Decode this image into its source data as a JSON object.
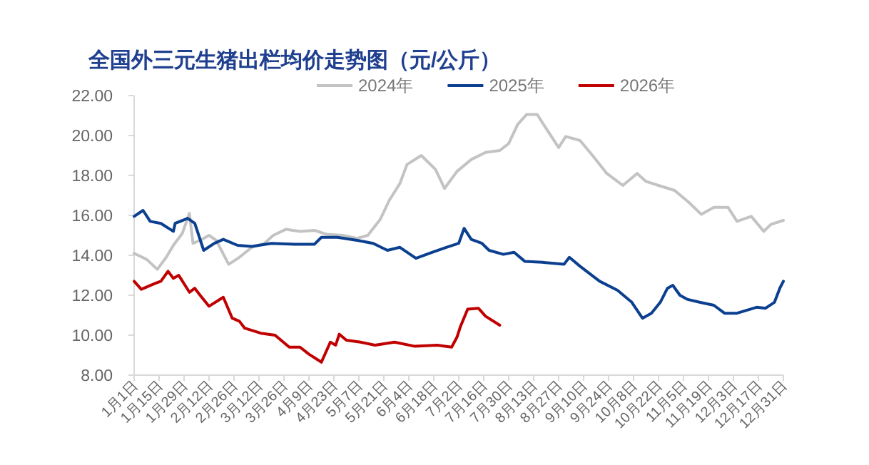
{
  "chart_data": {
    "type": "line",
    "title": "全国外三元生猪出栏均价走势图（元/公斤）",
    "xlim": [
      "--01-01",
      "--12-31"
    ],
    "ylim": [
      8,
      22
    ],
    "yticks": [
      {
        "value": 8,
        "label": "8.00"
      },
      {
        "value": 10,
        "label": "10.00"
      },
      {
        "value": 12,
        "label": "12.00"
      },
      {
        "value": 14,
        "label": "14.00"
      },
      {
        "value": 16,
        "label": "16.00"
      },
      {
        "value": 18,
        "label": "18.00"
      },
      {
        "value": 20,
        "label": "20.00"
      },
      {
        "value": 22,
        "label": "22.00"
      }
    ],
    "xticks": [
      {
        "value": "--01-01",
        "label": "1月1日"
      },
      {
        "value": "--01-15",
        "label": "1月15日"
      },
      {
        "value": "--01-29",
        "label": "1月29日"
      },
      {
        "value": "--02-12",
        "label": "2月12日"
      },
      {
        "value": "--02-26",
        "label": "2月26日"
      },
      {
        "value": "--03-12",
        "label": "3月12日"
      },
      {
        "value": "--03-26",
        "label": "3月26日"
      },
      {
        "value": "--04-09",
        "label": "4月9日"
      },
      {
        "value": "--04-23",
        "label": "4月23日"
      },
      {
        "value": "--05-07",
        "label": "5月7日"
      },
      {
        "value": "--05-21",
        "label": "5月21日"
      },
      {
        "value": "--06-04",
        "label": "6月4日"
      },
      {
        "value": "--06-18",
        "label": "6月18日"
      },
      {
        "value": "--07-02",
        "label": "7月2日"
      },
      {
        "value": "--07-16",
        "label": "7月16日"
      },
      {
        "value": "--07-30",
        "label": "7月30日"
      },
      {
        "value": "--08-13",
        "label": "8月13日"
      },
      {
        "value": "--08-27",
        "label": "8月27日"
      },
      {
        "value": "--09-10",
        "label": "9月10日"
      },
      {
        "value": "--09-24",
        "label": "9月24日"
      },
      {
        "value": "--10-08",
        "label": "10月8日"
      },
      {
        "value": "--10-22",
        "label": "10月22日"
      },
      {
        "value": "--11-05",
        "label": "11月5日"
      },
      {
        "value": "--11-19",
        "label": "11月19日"
      },
      {
        "value": "--12-03",
        "label": "12月3日"
      },
      {
        "value": "--12-17",
        "label": "12月17日"
      },
      {
        "value": "--12-31",
        "label": "12月31日"
      }
    ],
    "legend": "top",
    "series": [
      {
        "name": "2024年",
        "color": "#c3c3c3",
        "x": [
          "--01-01",
          "--01-08",
          "--01-14",
          "--01-19",
          "--01-23",
          "--01-28",
          "--02-01",
          "--02-03",
          "--02-07",
          "--02-12",
          "--02-16",
          "--02-23",
          "--03-01",
          "--03-08",
          "--03-15",
          "--03-20",
          "--03-27",
          "--04-04",
          "--04-12",
          "--04-19",
          "--04-28",
          "--05-06",
          "--05-12",
          "--05-19",
          "--05-24",
          "--05-30",
          "--06-03",
          "--06-11",
          "--06-19",
          "--06-24",
          "--07-01",
          "--07-09",
          "--07-17",
          "--07-25",
          "--07-30",
          "--08-04",
          "--08-09",
          "--08-15",
          "--08-20",
          "--08-27",
          "--08-31",
          "--09-08",
          "--09-15",
          "--09-23",
          "--10-02",
          "--10-10",
          "--10-15",
          "--10-22",
          "--10-31",
          "--11-08",
          "--11-15",
          "--11-22",
          "--11-30",
          "--12-05",
          "--12-13",
          "--12-20",
          "--12-24",
          "--12-31"
        ],
        "values": [
          14.1,
          13.8,
          13.3,
          13.9,
          14.5,
          15.1,
          16.1,
          14.6,
          14.75,
          15.0,
          14.75,
          13.55,
          13.9,
          14.4,
          14.6,
          15.0,
          15.3,
          15.2,
          15.25,
          15.05,
          15.0,
          14.85,
          15.0,
          15.8,
          16.75,
          17.6,
          18.55,
          19.0,
          18.3,
          17.35,
          18.2,
          18.8,
          19.15,
          19.25,
          19.6,
          20.55,
          21.05,
          21.05,
          20.35,
          19.4,
          19.95,
          19.75,
          19.0,
          18.1,
          17.5,
          18.1,
          17.7,
          17.5,
          17.25,
          16.65,
          16.05,
          16.4,
          16.4,
          15.7,
          15.95,
          15.2,
          15.55,
          15.75
        ]
      },
      {
        "name": "2025年",
        "color": "#0b3f8f",
        "x": [
          "--01-01",
          "--01-06",
          "--01-10",
          "--01-16",
          "--01-23",
          "--01-24",
          "--01-31",
          "--02-04",
          "--02-09",
          "--02-15",
          "--02-20",
          "--02-28",
          "--03-08",
          "--03-19",
          "--04-01",
          "--04-12",
          "--04-16",
          "--04-25",
          "--05-06",
          "--05-15",
          "--05-23",
          "--05-30",
          "--06-08",
          "--06-17",
          "--06-25",
          "--07-02",
          "--07-05",
          "--07-09",
          "--07-15",
          "--07-19",
          "--07-27",
          "--08-02",
          "--08-08",
          "--08-18",
          "--08-30",
          "--09-02",
          "--09-08",
          "--09-19",
          "--09-29",
          "--10-07",
          "--10-13",
          "--10-18",
          "--10-23",
          "--10-27",
          "--10-30",
          "--11-03",
          "--11-07",
          "--11-14",
          "--11-22",
          "--11-28",
          "--12-05",
          "--12-16",
          "--12-21",
          "--12-26",
          "--12-29",
          "--12-31"
        ],
        "values": [
          15.95,
          16.25,
          15.7,
          15.6,
          15.2,
          15.6,
          15.85,
          15.6,
          14.25,
          14.6,
          14.8,
          14.5,
          14.45,
          14.6,
          14.55,
          14.55,
          14.9,
          14.9,
          14.75,
          14.6,
          14.25,
          14.4,
          13.85,
          14.15,
          14.4,
          14.6,
          15.35,
          14.8,
          14.6,
          14.25,
          14.05,
          14.15,
          13.7,
          13.65,
          13.55,
          13.9,
          13.45,
          12.7,
          12.25,
          11.65,
          10.85,
          11.1,
          11.65,
          12.35,
          12.5,
          12.0,
          11.8,
          11.65,
          11.5,
          11.1,
          11.1,
          11.4,
          11.35,
          11.65,
          12.35,
          12.7
        ]
      },
      {
        "name": "2026年",
        "color": "#c00000",
        "x": [
          "--01-01",
          "--01-05",
          "--01-13",
          "--01-16",
          "--01-20",
          "--01-23",
          "--01-26",
          "--02-01",
          "--02-04",
          "--02-07",
          "--02-12",
          "--02-20",
          "--02-25",
          "--03-01",
          "--03-04",
          "--03-13",
          "--03-21",
          "--03-29",
          "--04-04",
          "--04-09",
          "--04-16",
          "--04-21",
          "--04-24",
          "--04-26",
          "--04-30",
          "--05-08",
          "--05-16",
          "--05-27",
          "--06-07",
          "--06-20",
          "--06-28",
          "--07-01",
          "--07-03",
          "--07-07",
          "--07-13",
          "--07-17",
          "--07-25"
        ],
        "values": [
          12.7,
          12.3,
          12.6,
          12.7,
          13.2,
          12.85,
          13.0,
          12.15,
          12.35,
          12.0,
          11.45,
          11.9,
          10.85,
          10.7,
          10.35,
          10.1,
          10.0,
          9.4,
          9.4,
          9.05,
          8.65,
          9.65,
          9.5,
          10.05,
          9.75,
          9.65,
          9.5,
          9.65,
          9.45,
          9.5,
          9.4,
          9.9,
          10.45,
          11.3,
          11.35,
          10.95,
          10.5
        ]
      }
    ]
  }
}
